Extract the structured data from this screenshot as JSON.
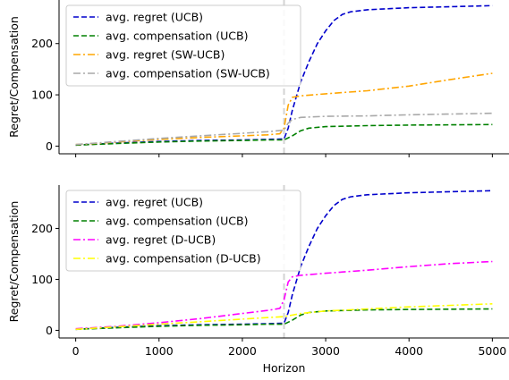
{
  "chart_data": [
    {
      "type": "line",
      "xlabel": "",
      "ylabel": "Regret/Compensation",
      "xlim": [
        -200,
        5200
      ],
      "ylim": [
        -15,
        285
      ],
      "xticks": [
        0,
        1000,
        2000,
        3000,
        4000,
        5000
      ],
      "xtick_labels_visible": false,
      "yticks": [
        0,
        100,
        200
      ],
      "change_point": 2500,
      "legend_position": "top-left",
      "series": [
        {
          "name": "avg. regret (UCB)",
          "color": "#0000cc",
          "style": "dashed",
          "x": [
            0,
            500,
            1000,
            1500,
            2000,
            2300,
            2500,
            2550,
            2600,
            2700,
            2800,
            2900,
            3000,
            3100,
            3200,
            3300,
            3500,
            4000,
            4500,
            5000
          ],
          "y": [
            2,
            6,
            9,
            11,
            12,
            13,
            14,
            35,
            70,
            125,
            165,
            200,
            225,
            245,
            257,
            262,
            266,
            270,
            272,
            274
          ]
        },
        {
          "name": "avg. compensation (UCB)",
          "color": "#008000",
          "style": "dashed",
          "x": [
            0,
            500,
            1000,
            1500,
            2000,
            2300,
            2500,
            2600,
            2700,
            2800,
            3000,
            3500,
            4000,
            5000
          ],
          "y": [
            2,
            5,
            8,
            10,
            11,
            12,
            12,
            20,
            30,
            35,
            38,
            40,
            41,
            42
          ]
        },
        {
          "name": "avg. regret (SW-UCB)",
          "color": "#ffa500",
          "style": "dashdot",
          "x": [
            0,
            500,
            1000,
            1500,
            2000,
            2300,
            2450,
            2500,
            2550,
            2600,
            2700,
            3000,
            3500,
            4000,
            4500,
            5000
          ],
          "y": [
            3,
            8,
            13,
            17,
            20,
            22,
            24,
            35,
            80,
            95,
            98,
            102,
            108,
            117,
            130,
            142
          ]
        },
        {
          "name": "avg. compensation (SW-UCB)",
          "color": "#a9a9a9",
          "style": "dashdot",
          "x": [
            0,
            500,
            1000,
            1500,
            2000,
            2300,
            2500,
            2550,
            2600,
            2700,
            3000,
            3500,
            4000,
            5000
          ],
          "y": [
            3,
            9,
            15,
            20,
            25,
            28,
            31,
            45,
            52,
            56,
            58,
            59,
            61,
            64
          ]
        }
      ]
    },
    {
      "type": "line",
      "xlabel": "Horizon",
      "ylabel": "Regret/Compensation",
      "xlim": [
        -200,
        5200
      ],
      "ylim": [
        -15,
        285
      ],
      "xticks": [
        0,
        1000,
        2000,
        3000,
        4000,
        5000
      ],
      "xtick_labels": [
        "0",
        "1000",
        "2000",
        "3000",
        "4000",
        "5000"
      ],
      "yticks": [
        0,
        100,
        200
      ],
      "change_point": 2500,
      "legend_position": "top-left",
      "series": [
        {
          "name": "avg. regret (UCB)",
          "color": "#0000cc",
          "style": "dashed",
          "x": [
            0,
            500,
            1000,
            1500,
            2000,
            2300,
            2500,
            2550,
            2600,
            2700,
            2800,
            2900,
            3000,
            3100,
            3200,
            3300,
            3500,
            4000,
            4500,
            5000
          ],
          "y": [
            2,
            6,
            9,
            11,
            12,
            13,
            14,
            35,
            70,
            125,
            165,
            200,
            225,
            245,
            257,
            262,
            266,
            270,
            272,
            274
          ]
        },
        {
          "name": "avg. compensation (UCB)",
          "color": "#008000",
          "style": "dashed",
          "x": [
            0,
            500,
            1000,
            1500,
            2000,
            2300,
            2500,
            2600,
            2700,
            2800,
            3000,
            3500,
            4000,
            5000
          ],
          "y": [
            2,
            5,
            8,
            10,
            11,
            12,
            12,
            20,
            30,
            35,
            38,
            40,
            41,
            42
          ]
        },
        {
          "name": "avg. regret (D-UCB)",
          "color": "#ff00ff",
          "style": "dashdot",
          "x": [
            0,
            500,
            1000,
            1500,
            2000,
            2300,
            2450,
            2500,
            2550,
            2600,
            2700,
            3000,
            3500,
            4000,
            4500,
            5000
          ],
          "y": [
            3,
            8,
            15,
            23,
            33,
            39,
            43,
            60,
            95,
            105,
            108,
            112,
            118,
            125,
            131,
            135
          ]
        },
        {
          "name": "avg. compensation (D-UCB)",
          "color": "#ffff00",
          "style": "dashdot",
          "x": [
            0,
            500,
            1000,
            1500,
            2000,
            2300,
            2500,
            2600,
            2700,
            3000,
            3500,
            4000,
            4500,
            5000
          ],
          "y": [
            2,
            7,
            12,
            17,
            22,
            25,
            27,
            30,
            33,
            38,
            42,
            46,
            49,
            52
          ]
        }
      ]
    }
  ]
}
